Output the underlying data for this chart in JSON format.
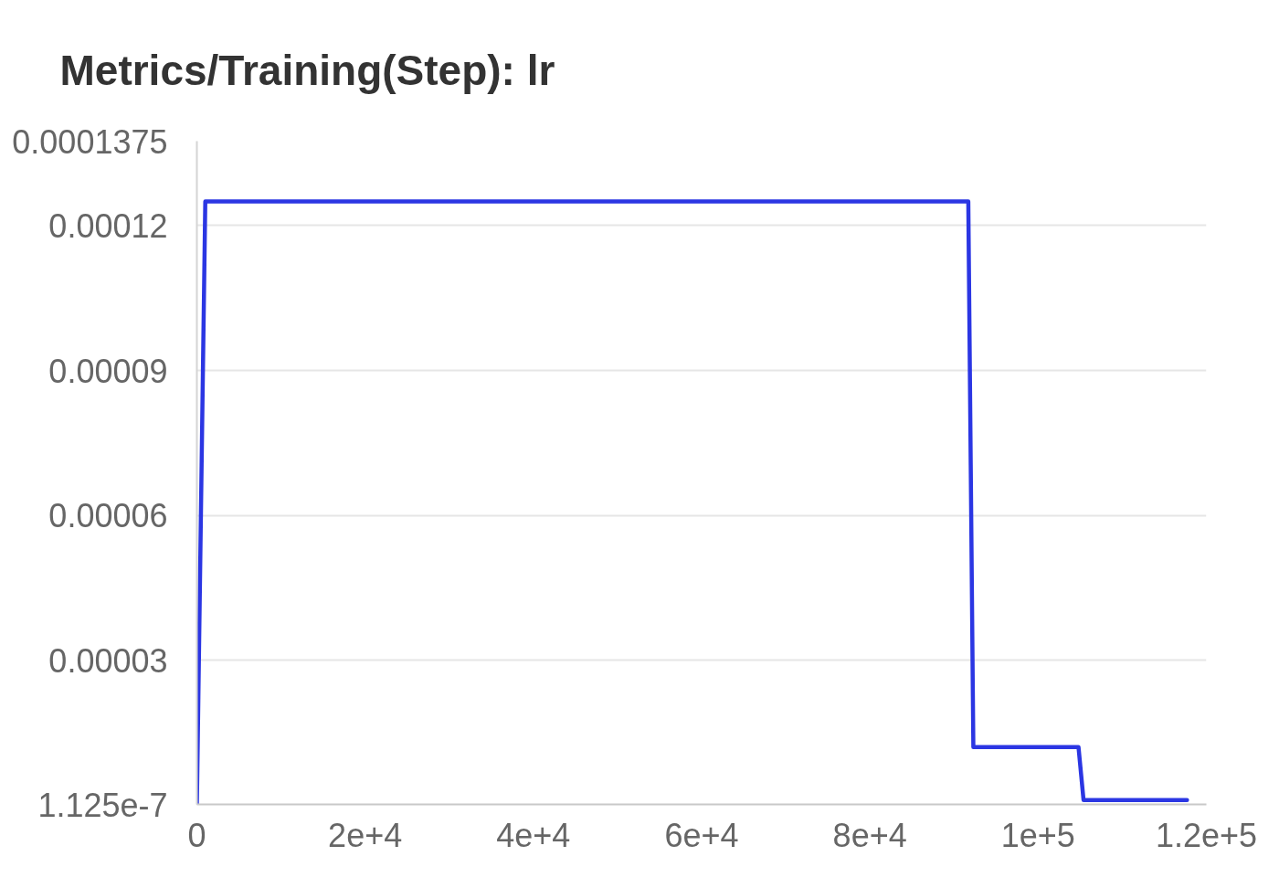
{
  "chart_data": {
    "type": "line",
    "title": "Metrics/Training(Step): lr",
    "series": [
      {
        "color": "#2b36e3",
        "x": [
          0,
          1000,
          91700,
          92300,
          104800,
          105400,
          117700
        ],
        "values": [
          1.125e-07,
          0.000125,
          0.000125,
          1.2e-05,
          1.2e-05,
          1e-06,
          1e-06
        ]
      }
    ],
    "xlim": [
      0,
      120000
    ],
    "ylim": [
      1.125e-07,
      0.0001375
    ],
    "xticks": [
      0,
      {
        "value": 20000,
        "label": "2e+4"
      },
      {
        "value": 40000,
        "label": "4e+4"
      },
      {
        "value": 60000,
        "label": "6e+4"
      },
      {
        "value": 80000,
        "label": "8e+4"
      },
      {
        "value": 100000,
        "label": "1e+5"
      },
      {
        "value": 120000,
        "label": "1.2e+5"
      }
    ],
    "yticks": [
      {
        "value": 1.125e-07,
        "label": "1.125e-7"
      },
      {
        "value": 3e-05,
        "label": "0.00003"
      },
      {
        "value": 6e-05,
        "label": "0.00006"
      },
      {
        "value": 9e-05,
        "label": "0.00009"
      },
      0.00012,
      0.0001375
    ],
    "grid": "y"
  }
}
